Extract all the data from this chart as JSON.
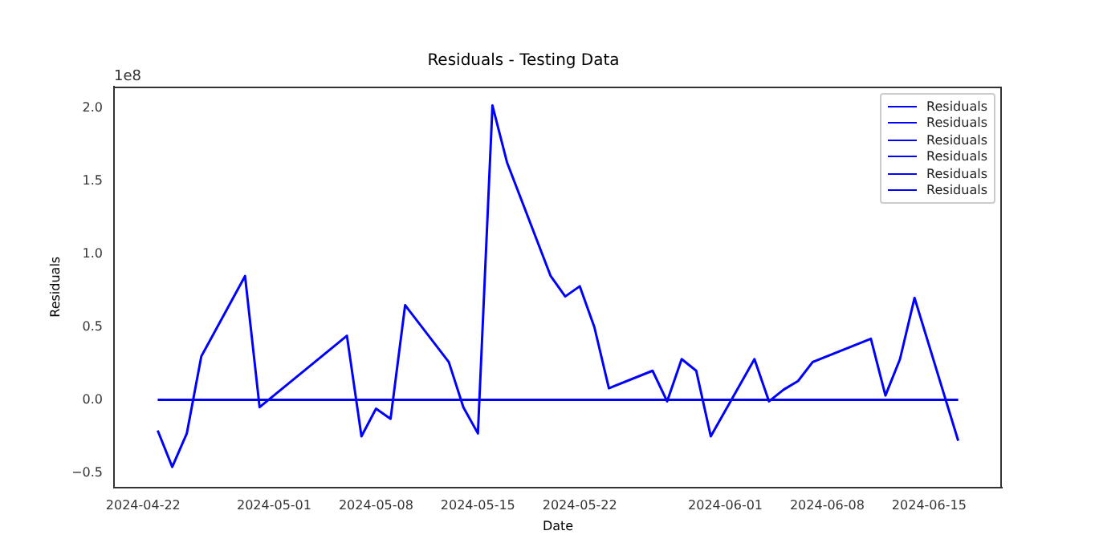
{
  "chart_data": {
    "type": "line",
    "title": "Residuals - Testing Data",
    "xlabel": "Date",
    "ylabel": "Residuals",
    "annotations": [
      "1e8"
    ],
    "x": [
      "2024-04-23",
      "2024-04-24",
      "2024-04-25",
      "2024-04-26",
      "2024-04-29",
      "2024-04-30",
      "2024-05-06",
      "2024-05-07",
      "2024-05-08",
      "2024-05-09",
      "2024-05-10",
      "2024-05-13",
      "2024-05-14",
      "2024-05-15",
      "2024-05-16",
      "2024-05-17",
      "2024-05-20",
      "2024-05-21",
      "2024-05-22",
      "2024-05-23",
      "2024-05-24",
      "2024-05-27",
      "2024-05-28",
      "2024-05-29",
      "2024-05-30",
      "2024-05-31",
      "2024-06-03",
      "2024-06-04",
      "2024-06-05",
      "2024-06-06",
      "2024-06-07",
      "2024-06-11",
      "2024-06-12",
      "2024-06-13",
      "2024-06-14",
      "2024-06-17"
    ],
    "series": [
      {
        "name": "Residuals",
        "color": "#0000ff",
        "values": [
          -0.21,
          -0.46,
          -0.23,
          0.3,
          0.85,
          -0.05,
          0.44,
          -0.25,
          -0.06,
          -0.13,
          0.65,
          0.26,
          -0.05,
          -0.23,
          2.02,
          1.63,
          0.85,
          0.71,
          0.78,
          0.5,
          0.08,
          0.2,
          -0.01,
          0.28,
          0.2,
          -0.25,
          0.28,
          -0.01,
          0.07,
          0.13,
          0.26,
          0.42,
          0.03,
          0.28,
          0.7,
          -0.28
        ]
      },
      {
        "name": "Residuals",
        "color": "#0000ff",
        "values": [
          null,
          null,
          null,
          null,
          null,
          null,
          null,
          null,
          null,
          null,
          null,
          null,
          null,
          null,
          null,
          null,
          null,
          null,
          null,
          null,
          null,
          null,
          null,
          null,
          null,
          null,
          null,
          null,
          null,
          null,
          null,
          null,
          null,
          null,
          null,
          null
        ]
      },
      {
        "name": "Residuals",
        "color": "#0000ff",
        "values": [
          null,
          null,
          null,
          null,
          null,
          null,
          null,
          null,
          null,
          null,
          null,
          null,
          null,
          null,
          null,
          null,
          null,
          null,
          null,
          null,
          null,
          null,
          null,
          null,
          null,
          null,
          null,
          null,
          null,
          null,
          null,
          null,
          null,
          null,
          null,
          null
        ]
      },
      {
        "name": "Residuals",
        "color": "#0000ff",
        "values": [
          null,
          null,
          null,
          null,
          null,
          null,
          null,
          null,
          null,
          null,
          null,
          null,
          null,
          null,
          null,
          null,
          null,
          null,
          null,
          null,
          null,
          null,
          null,
          null,
          null,
          null,
          null,
          null,
          null,
          null,
          null,
          null,
          null,
          null,
          null,
          null
        ]
      },
      {
        "name": "Residuals",
        "color": "#0000ff",
        "values": [
          null,
          null,
          null,
          null,
          null,
          null,
          null,
          null,
          null,
          null,
          null,
          null,
          null,
          null,
          null,
          null,
          null,
          null,
          null,
          null,
          null,
          null,
          null,
          null,
          null,
          null,
          null,
          null,
          null,
          null,
          null,
          null,
          null,
          null,
          null,
          null
        ]
      },
      {
        "name": "Residuals",
        "color": "#0000ff",
        "values": [
          0,
          0,
          0,
          0,
          0,
          0,
          0,
          0,
          0,
          0,
          0,
          0,
          0,
          0,
          0,
          0,
          0,
          0,
          0,
          0,
          0,
          0,
          0,
          0,
          0,
          0,
          0,
          0,
          0,
          0,
          0,
          0,
          0,
          0,
          0,
          0
        ]
      }
    ],
    "xlim": [
      "2024-04-20",
      "2024-06-20"
    ],
    "xticks": [
      "2024-04-22",
      "2024-05-01",
      "2024-05-08",
      "2024-05-15",
      "2024-05-22",
      "2024-06-01",
      "2024-06-08",
      "2024-06-15"
    ],
    "ylim": [
      -0.6,
      2.15
    ],
    "yticks": [
      {
        "value": -0.5,
        "label": "−0.5"
      },
      {
        "value": 0,
        "label": "0.0"
      },
      {
        "value": 0.5,
        "label": "0.5"
      },
      {
        "value": 1,
        "label": "1.0"
      },
      {
        "value": 1.5,
        "label": "1.5"
      },
      {
        "value": 2,
        "label": "2.0"
      }
    ],
    "grid": false,
    "legend": "top right",
    "marker": "none",
    "line_style": "solid"
  }
}
